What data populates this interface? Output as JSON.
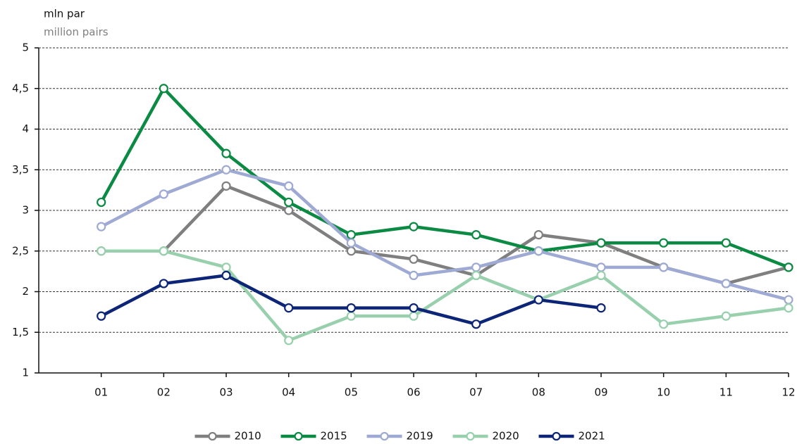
{
  "chart_data": {
    "type": "line",
    "title": "mln par",
    "subtitle": "million pairs",
    "categories": [
      "01",
      "02",
      "03",
      "04",
      "05",
      "06",
      "07",
      "08",
      "09",
      "10",
      "11",
      "12"
    ],
    "series": [
      {
        "name": "2010",
        "color": "#7f7f7f",
        "values": [
          2.5,
          2.5,
          3.3,
          3.0,
          2.5,
          2.4,
          2.2,
          2.7,
          2.6,
          2.3,
          2.1,
          2.3
        ]
      },
      {
        "name": "2015",
        "color": "#0a8a42",
        "values": [
          3.1,
          4.5,
          3.7,
          3.1,
          2.7,
          2.8,
          2.7,
          2.5,
          2.6,
          2.6,
          2.6,
          2.3
        ]
      },
      {
        "name": "2019",
        "color": "#9eaad4",
        "values": [
          2.8,
          3.2,
          3.5,
          3.3,
          2.6,
          2.2,
          2.3,
          2.5,
          2.3,
          2.3,
          2.1,
          1.9
        ]
      },
      {
        "name": "2020",
        "color": "#98d0ad",
        "values": [
          2.5,
          2.5,
          2.3,
          1.4,
          1.7,
          1.7,
          2.2,
          1.9,
          2.2,
          1.6,
          1.7,
          1.8
        ]
      },
      {
        "name": "2021",
        "color": "#0c2577",
        "values": [
          1.7,
          2.1,
          2.2,
          1.8,
          1.8,
          1.8,
          1.6,
          1.9,
          1.8,
          null,
          null,
          null
        ]
      }
    ],
    "ylim": [
      1,
      5
    ],
    "yticks": [
      1,
      {
        "value": 1.5,
        "label": "1,5"
      },
      2,
      {
        "value": 2.5,
        "label": "2,5"
      },
      3,
      {
        "value": 3.5,
        "label": "3,5"
      },
      4,
      {
        "value": 4.5,
        "label": "4,5"
      },
      5
    ],
    "grid": true,
    "legend": "bottom"
  }
}
